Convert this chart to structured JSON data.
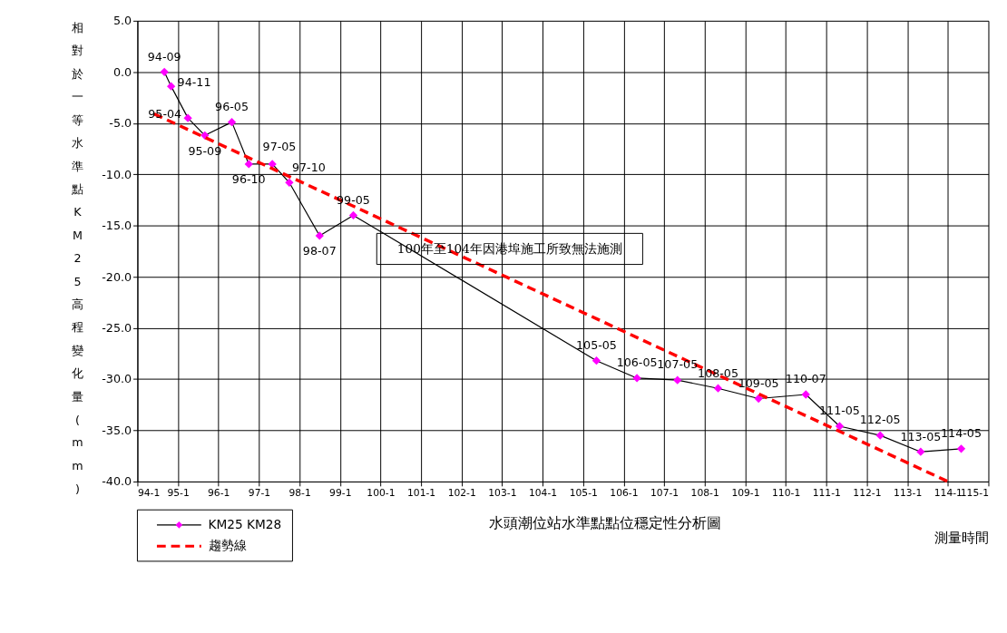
{
  "chart_data": {
    "type": "line",
    "title": "水頭潮位站水準點點位穩定性分析圖",
    "xlabel": "測量時間",
    "ylabel": "相對於一等水準點KM25高程變化量(mm)",
    "xlim": [
      "0094-01",
      "0115-01"
    ],
    "xticks": [
      {
        "value": "0094-01",
        "label": "94-1"
      },
      {
        "value": "0095-01",
        "label": "95-1"
      },
      {
        "value": "0096-01",
        "label": "96-1"
      },
      {
        "value": "0097-01",
        "label": "97-1"
      },
      {
        "value": "0098-01",
        "label": "98-1"
      },
      {
        "value": "0099-01",
        "label": "99-1"
      },
      {
        "value": "0100-01",
        "label": "100-1"
      },
      {
        "value": "0101-01",
        "label": "101-1"
      },
      {
        "value": "0102-01",
        "label": "102-1"
      },
      {
        "value": "0103-01",
        "label": "103-1"
      },
      {
        "value": "0104-01",
        "label": "104-1"
      },
      {
        "value": "0105-01",
        "label": "105-1"
      },
      {
        "value": "0106-01",
        "label": "106-1"
      },
      {
        "value": "0107-01",
        "label": "107-1"
      },
      {
        "value": "0108-01",
        "label": "108-1"
      },
      {
        "value": "0109-01",
        "label": "109-1"
      },
      {
        "value": "0110-01",
        "label": "110-1"
      },
      {
        "value": "0111-01",
        "label": "111-1"
      },
      {
        "value": "0112-01",
        "label": "112-1"
      },
      {
        "value": "0113-01",
        "label": "113-1"
      },
      {
        "value": "0114-01",
        "label": "114-1"
      },
      {
        "value": "0115-01",
        "label": "115-1"
      }
    ],
    "ylim": [
      -40,
      5
    ],
    "yticks": [
      {
        "value": 5,
        "label": "5.0"
      },
      {
        "value": 0,
        "label": "0.0"
      },
      {
        "value": -5,
        "label": "-5.0"
      },
      {
        "value": -10,
        "label": "-10.0"
      },
      {
        "value": -15,
        "label": "-15.0"
      },
      {
        "value": -20,
        "label": "-20.0"
      },
      {
        "value": -25,
        "label": "-25.0"
      },
      {
        "value": -30,
        "label": "-30.0"
      },
      {
        "value": -35,
        "label": "-35.0"
      },
      {
        "value": -40,
        "label": "-40.0"
      }
    ],
    "grid": true,
    "legend": "bottom left",
    "series": [
      {
        "name": "KM25 KM28",
        "color": "#ff00ff",
        "marker": "diamond",
        "line_style": "solid",
        "x": [
          "0094-09",
          "0094-11",
          "0095-04",
          "0095-09",
          "0096-05",
          "0096-10",
          "0097-05",
          "0097-10",
          "0098-07",
          "0099-05",
          "0105-05",
          "0106-05",
          "0107-05",
          "0108-05",
          "0109-05",
          "0110-07",
          "0111-05",
          "0112-05",
          "0113-05",
          "0114-05"
        ],
        "values": [
          0,
          -1.4,
          -4.5,
          -6.2,
          -4.9,
          -9.0,
          -9.0,
          -10.8,
          -16.0,
          -14.0,
          -28.2,
          -29.9,
          -30.1,
          -30.9,
          -31.9,
          -31.5,
          -34.6,
          -35.5,
          -37.1,
          -36.8
        ]
      },
      {
        "name": "趨勢線",
        "color": "#ff0000",
        "marker": "none",
        "line_style": "dashed",
        "x": [
          "0094-06",
          "0114-01"
        ],
        "values": [
          -4.1,
          -40.0
        ]
      }
    ],
    "annotations": [
      {
        "text": "94-09",
        "x": "0094-09",
        "y": 0
      },
      {
        "text": "94-11",
        "x": "0094-11",
        "y": -1.4
      },
      {
        "text": "95-04",
        "x": "0095-04",
        "y": -4.5
      },
      {
        "text": "95-09",
        "x": "0095-09",
        "y": -6.2
      },
      {
        "text": "96-05",
        "x": "0096-05",
        "y": -4.9
      },
      {
        "text": "96-10",
        "x": "0096-10",
        "y": -9.0
      },
      {
        "text": "97-05",
        "x": "0097-05",
        "y": -9.0
      },
      {
        "text": "97-10",
        "x": "0097-10",
        "y": -10.8
      },
      {
        "text": "98-07",
        "x": "0098-07",
        "y": -16.0
      },
      {
        "text": "99-05",
        "x": "0099-05",
        "y": -14.0
      },
      {
        "text": "105-05",
        "x": "0105-05",
        "y": -28.2
      },
      {
        "text": "106-05",
        "x": "0106-05",
        "y": -29.9
      },
      {
        "text": "107-05",
        "x": "0107-05",
        "y": -30.1
      },
      {
        "text": "108-05",
        "x": "0108-05",
        "y": -30.9
      },
      {
        "text": "109-05",
        "x": "0109-05",
        "y": -31.9
      },
      {
        "text": "110-07",
        "x": "0110-07",
        "y": -31.5
      },
      {
        "text": "111-05",
        "x": "0111-05",
        "y": -34.6
      },
      {
        "text": "112-05",
        "x": "0112-05",
        "y": -35.5
      },
      {
        "text": "113-05",
        "x": "0113-05",
        "y": -37.1
      },
      {
        "text": "114-05",
        "x": "0114-05",
        "y": -36.8
      },
      "100年至104年因港埠施工所致無法施測"
    ]
  }
}
